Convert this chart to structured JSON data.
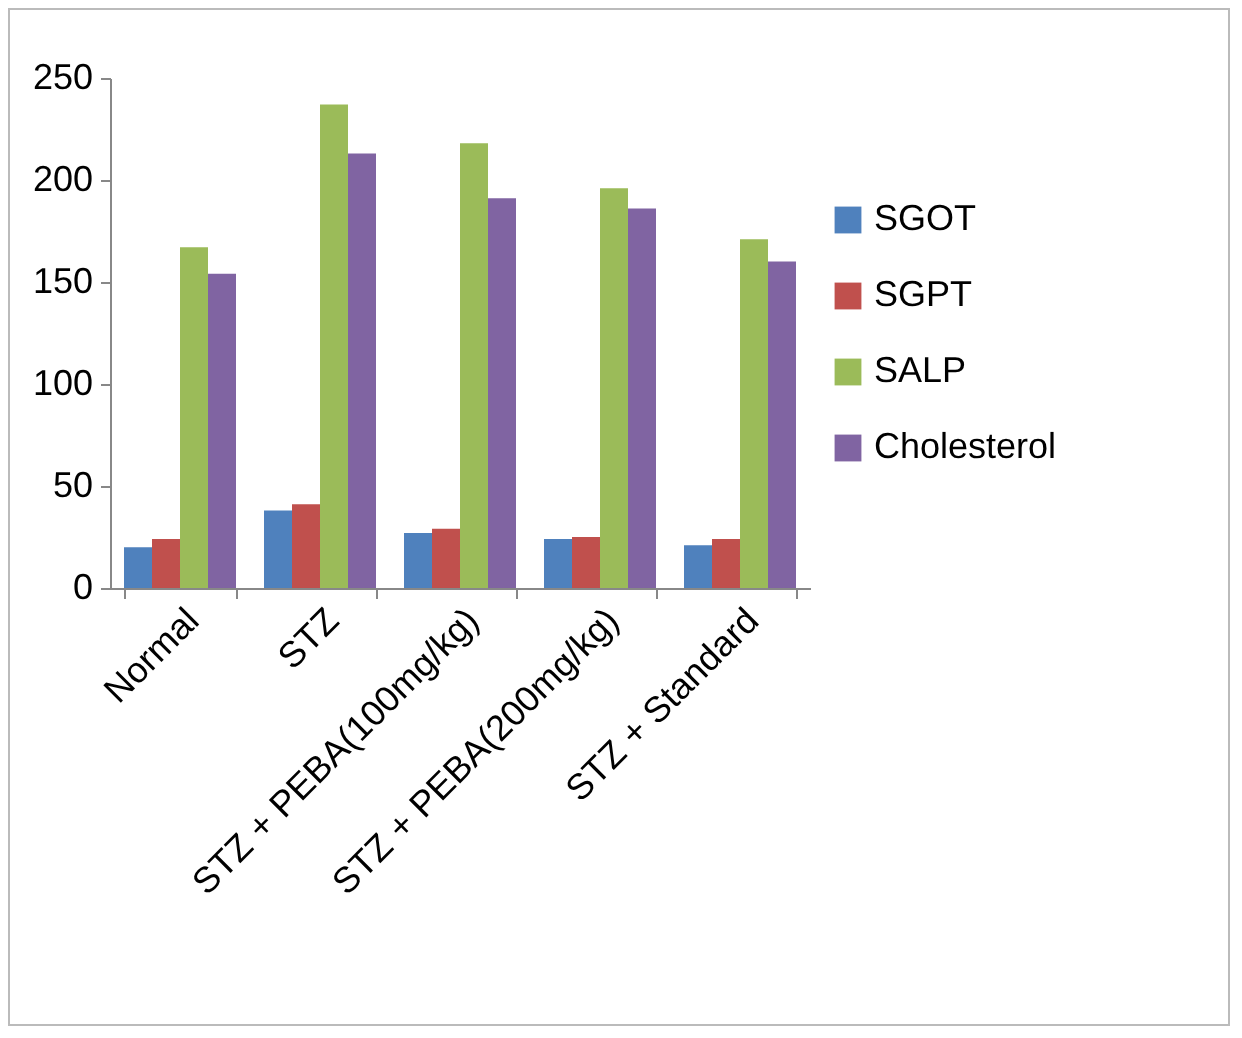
{
  "chart_data": {
    "type": "bar",
    "categories": [
      "Normal",
      "STZ",
      "STZ + PEBA(100mg/kg)",
      "STZ + PEBA(200mg/kg)",
      "STZ + Standard"
    ],
    "series": [
      {
        "name": "SGOT",
        "color": "#4f81bd",
        "values": [
          20,
          38,
          27,
          24,
          21
        ]
      },
      {
        "name": "SGPT",
        "color": "#c0504d",
        "values": [
          24,
          41,
          29,
          25,
          24
        ]
      },
      {
        "name": "SALP",
        "color": "#9bbb59",
        "values": [
          167,
          237,
          218,
          196,
          171
        ]
      },
      {
        "name": "Cholesterol",
        "color": "#8064a2",
        "values": [
          154,
          213,
          191,
          186,
          160
        ]
      }
    ],
    "ylim": [
      0,
      250
    ],
    "yticks": [
      0,
      50,
      100,
      150,
      200,
      250
    ],
    "grid": false,
    "legend": "right"
  }
}
